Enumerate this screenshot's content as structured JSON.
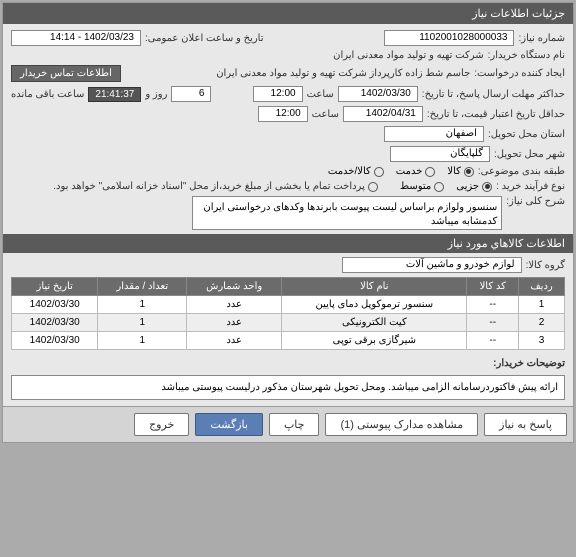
{
  "header": {
    "title": "جزئیات اطلاعات نیاز"
  },
  "fields": {
    "need_no_label": "شماره نیاز:",
    "need_no": "1102001028000033",
    "announce_label": "تاریخ و ساعت اعلان عمومی:",
    "announce_val": "1402/03/23 - 14:14",
    "buyer_label": "نام دستگاه خریدار:",
    "buyer_val": "شرکت تهیه و تولید مواد معدنی ایران",
    "requester_label": "ایجاد کننده درخواست:",
    "requester_val": "جاسم شط زاده کارپرداز شرکت تهیه و تولید مواد معدنی ایران",
    "contact_btn": "اطلاعات تماس خریدار",
    "deadline_label": "حداکثر مهلت ارسال پاسخ، تا تاریخ:",
    "deadline_date": "1402/03/30",
    "time_label": "ساعت",
    "deadline_time": "12:00",
    "days_remain": "6",
    "days_label": "روز و",
    "time_remain": "21:41:37",
    "remain_label": "ساعت باقی مانده",
    "valid_label": "حداقل تاریخ اعتبار قیمت، تا تاریخ:",
    "valid_date": "1402/04/31",
    "valid_time": "12:00",
    "province_label": "استان محل تحویل:",
    "province_val": "اصفهان",
    "city_label": "شهر محل تحویل:",
    "city_val": "گلپایگان",
    "class_label": "طبقه بندی موضوعی:",
    "class_opts": {
      "goods": "کالا",
      "service": "خدمت",
      "both": "کالا/خدمت"
    },
    "process_label": "نوع فرآیند خرید :",
    "process_opts": {
      "partial": "جزیی",
      "medium": "متوسط"
    },
    "process_note": "پرداخت تمام یا بخشی از مبلغ خرید،از محل \"اسناد خزانه اسلامی\" خواهد بود.",
    "desc_label": "شرح کلی نیاز:",
    "desc_val": "سنسور ولوازم براساس لیست پیوست بابرندها وکدهای درخواستی ایران کدمشابه میباشد"
  },
  "items_header": "اطلاعات کالاهاي مورد نياز",
  "group_label": "گروه کالا:",
  "group_val": "لوازم خودرو و ماشین آلات",
  "table": {
    "cols": [
      "ردیف",
      "کد کالا",
      "نام کالا",
      "واحد شمارش",
      "تعداد / مقدار",
      "تاریخ نیاز"
    ],
    "rows": [
      [
        "1",
        "--",
        "سنسور ترموکوپل دمای پایین",
        "عدد",
        "1",
        "1402/03/30"
      ],
      [
        "2",
        "--",
        "کیت الکترونیکی",
        "عدد",
        "1",
        "1402/03/30"
      ],
      [
        "3",
        "--",
        "شیرگازی برقی توپی",
        "عدد",
        "1",
        "1402/03/30"
      ]
    ]
  },
  "buyer_notes_label": "توضیحات خریدار:",
  "buyer_notes": "ارائه پیش فاکتوردرسامانه الزامی میباشد. ومحل تحویل شهرستان مذکور درلیست پیوستی میباشد",
  "footer": {
    "respond": "پاسخ به نیاز",
    "attachments": "مشاهده مدارک پیوستی (1)",
    "print": "چاپ",
    "back": "بازگشت",
    "exit": "خروج"
  }
}
